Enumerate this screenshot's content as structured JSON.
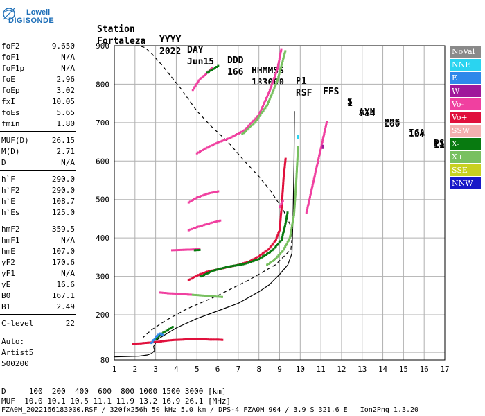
{
  "logo": {
    "line1": "Lowell",
    "line2": "DIGISONDE",
    "color": "#1e6fb8"
  },
  "header": {
    "row1": [
      "Station",
      "YYYY",
      "DAY",
      "DDD",
      "HHMMSS",
      "P1",
      "FFS",
      "S",
      "AXN",
      "PPS",
      "IGA",
      "PS"
    ],
    "row2": [
      "Fortaleza",
      "2022",
      "Jun15",
      "166",
      "183000",
      "RSF",
      "1",
      "714",
      "100",
      "10+",
      "11"
    ]
  },
  "params1": [
    {
      "key": "foF2",
      "value": "9.650"
    },
    {
      "key": "foF1",
      "value": "N/A"
    },
    {
      "key": "foF1p",
      "value": "N/A"
    },
    {
      "key": "foE",
      "value": "2.96"
    },
    {
      "key": "foEp",
      "value": "3.02"
    },
    {
      "key": "fxI",
      "value": "10.05"
    },
    {
      "key": "foEs",
      "value": "5.65"
    },
    {
      "key": "fmin",
      "value": "1.80"
    }
  ],
  "params2": [
    {
      "key": "MUF(D)",
      "value": "26.15"
    },
    {
      "key": "M(D)",
      "value": "2.71"
    },
    {
      "key": "D",
      "value": "N/A"
    }
  ],
  "params3": [
    {
      "key": "h`F",
      "value": "290.0"
    },
    {
      "key": "h`F2",
      "value": "290.0"
    },
    {
      "key": "h`E",
      "value": "108.7"
    },
    {
      "key": "h`Es",
      "value": "125.0"
    }
  ],
  "params4": [
    {
      "key": "hmF2",
      "value": "359.5"
    },
    {
      "key": "hmF1",
      "value": "N/A"
    },
    {
      "key": "hmE",
      "value": "107.0"
    },
    {
      "key": "yF2",
      "value": "170.6"
    },
    {
      "key": "yF1",
      "value": "N/A"
    },
    {
      "key": "yE",
      "value": "16.6"
    },
    {
      "key": "B0",
      "value": "167.1"
    },
    {
      "key": "B1",
      "value": "2.49"
    }
  ],
  "params5": [
    {
      "key": "C-level",
      "value": "22"
    }
  ],
  "auto": {
    "line1": "Auto:",
    "line2": "Artist5",
    "line3": "500200"
  },
  "legend": [
    {
      "label": "NoVal",
      "bg": "#8a8a8a",
      "fg": "#ffffff"
    },
    {
      "label": "NNE",
      "bg": "#2ad4f0",
      "fg": "#ffffff"
    },
    {
      "label": "E",
      "bg": "#2f88ea",
      "fg": "#ffffff"
    },
    {
      "label": "W",
      "bg": "#a0189a",
      "fg": "#ffffff"
    },
    {
      "label": "Vo-",
      "bg": "#f040a0",
      "fg": "#ffffff"
    },
    {
      "label": "Vo+",
      "bg": "#e0103c",
      "fg": "#ffffff"
    },
    {
      "label": "SSW",
      "bg": "#f4b0b0",
      "fg": "#ffffff"
    },
    {
      "label": "X-",
      "bg": "#087a10",
      "fg": "#ffffff"
    },
    {
      "label": "X+",
      "bg": "#78c060",
      "fg": "#ffffff"
    },
    {
      "label": "SSE",
      "bg": "#c8d020",
      "fg": "#ffffff"
    },
    {
      "label": "NNW",
      "bg": "#1818c8",
      "fg": "#ffffff"
    }
  ],
  "footer": {
    "row1": "D     100  200  400  600  800 1000 1500 3000 [km]",
    "row2": "MUF  10.0 10.1 10.5 11.1 11.9 13.2 16.9 26.1 [MHz]",
    "row3": "FZA0M_2022166183000.RSF / 320fx256h 50 kHz 5.0 km / DPS-4 FZA0M 904 / 3.9 S 321.6 E   Ion2Png 1.3.20"
  },
  "chart_data": {
    "type": "scatter",
    "title": "",
    "xlabel": "",
    "ylabel": "",
    "xlim": [
      1,
      17
    ],
    "ylim": [
      80,
      900
    ],
    "xticks": [
      1,
      2,
      3,
      4,
      5,
      6,
      7,
      8,
      9,
      10,
      11,
      12,
      13,
      14,
      15,
      16,
      17
    ],
    "yticks": [
      100,
      200,
      300,
      400,
      500,
      600,
      700,
      800,
      900
    ],
    "ytick_labels": [
      "",
      "200",
      "300",
      "400",
      "500",
      "600",
      "700",
      "800",
      "900"
    ],
    "y_bottom_label": "80",
    "grid": true,
    "profile_curve": {
      "x": [
        1.0,
        1.6,
        2.2,
        2.6,
        2.8,
        2.95,
        2.9,
        3.1,
        4.0,
        5.0,
        6.0,
        7.0,
        7.5,
        8.0,
        8.5,
        9.0,
        9.4,
        9.6,
        9.65,
        9.7,
        9.72
      ],
      "y": [
        88,
        89,
        90,
        93,
        97,
        105,
        115,
        135,
        165,
        190,
        210,
        230,
        245,
        260,
        278,
        305,
        330,
        360,
        450,
        600,
        730
      ]
    },
    "dashed_curve": {
      "x": [
        2.0,
        2.2,
        2.5,
        2.8,
        3.3,
        4.2,
        5.0,
        5.7,
        6.5,
        7.3,
        8.0,
        8.6,
        9.2,
        9.55,
        9.6,
        9.55,
        8.8,
        7.5,
        6.0,
        4.5,
        3.5,
        2.8,
        2.4
      ],
      "y": [
        900,
        900,
        895,
        880,
        850,
        790,
        730,
        690,
        650,
        600,
        560,
        520,
        470,
        430,
        400,
        370,
        330,
        290,
        250,
        215,
        185,
        160,
        140
      ]
    },
    "traces": [
      {
        "name": "Vo+",
        "color": "#e0103c",
        "x": [
          4.6,
          5.0,
          5.5,
          6.0,
          6.5,
          7.0,
          7.5,
          8.0,
          8.5,
          8.8,
          9.0,
          9.1,
          9.2,
          9.3
        ],
        "y": [
          290,
          302,
          312,
          318,
          324,
          330,
          338,
          352,
          372,
          392,
          420,
          480,
          560,
          610
        ]
      },
      {
        "name": "X-",
        "color": "#087a10",
        "x": [
          5.2,
          5.8,
          6.5,
          7.3,
          8.0,
          8.6,
          9.1,
          9.3,
          9.4
        ],
        "y": [
          300,
          315,
          325,
          332,
          345,
          365,
          395,
          440,
          470
        ]
      },
      {
        "name": "X+",
        "color": "#78c060",
        "x": [
          8.4,
          8.8,
          9.2,
          9.5,
          9.7,
          9.8,
          9.9
        ],
        "y": [
          330,
          345,
          370,
          400,
          460,
          540,
          640
        ]
      },
      {
        "name": "Vo-",
        "color": "#f040a0",
        "x": [
          5.0,
          5.5,
          6.0,
          6.6,
          7.3,
          8.0,
          8.5,
          8.9,
          9.1
        ],
        "y": [
          620,
          635,
          648,
          660,
          680,
          720,
          780,
          840,
          895
        ]
      },
      {
        "name": "X+",
        "color": "#78c060",
        "x": [
          7.2,
          7.8,
          8.4,
          8.9,
          9.3
        ],
        "y": [
          670,
          700,
          745,
          810,
          890
        ]
      },
      {
        "name": "Vo-",
        "color": "#f040a0",
        "x": [
          4.8,
          5.1,
          5.5,
          5.8
        ],
        "y": [
          785,
          810,
          830,
          845
        ]
      },
      {
        "name": "X-",
        "color": "#087a10",
        "x": [
          5.5,
          5.8,
          6.1
        ],
        "y": [
          830,
          840,
          850
        ]
      },
      {
        "name": "Vo-",
        "color": "#f040a0",
        "x": [
          4.6,
          5.0,
          5.5,
          6.1
        ],
        "y": [
          492,
          505,
          515,
          522
        ]
      },
      {
        "name": "Vo-",
        "color": "#f040a0",
        "x": [
          4.6,
          5.0,
          5.5,
          5.9,
          6.2
        ],
        "y": [
          420,
          428,
          436,
          442,
          446
        ]
      },
      {
        "name": "Vo-",
        "color": "#f040a0",
        "x": [
          3.8,
          4.3,
          4.8,
          5.2
        ],
        "y": [
          368,
          369,
          370,
          371
        ]
      },
      {
        "name": "X-",
        "color": "#087a10",
        "x": [
          4.9,
          5.2
        ],
        "y": [
          368,
          369
        ]
      },
      {
        "name": "Vo-",
        "color": "#f040a0",
        "x": [
          3.2,
          3.6,
          4.0,
          4.5,
          4.8
        ],
        "y": [
          258,
          256,
          255,
          253,
          252
        ]
      },
      {
        "name": "X+",
        "color": "#78c060",
        "x": [
          4.8,
          5.3,
          5.8,
          6.3
        ],
        "y": [
          252,
          250,
          248,
          246
        ]
      },
      {
        "name": "Vo+",
        "color": "#e0103c",
        "x": [
          1.9,
          2.3,
          2.7,
          3.1,
          3.5,
          3.9,
          4.3,
          4.7,
          5.2,
          5.6,
          6.0,
          6.3
        ],
        "y": [
          123,
          124,
          126,
          128,
          131,
          133,
          134,
          135,
          135,
          134,
          134,
          133
        ]
      },
      {
        "name": "X-",
        "color": "#087a10",
        "x": [
          3.0,
          3.3,
          3.6,
          3.9
        ],
        "y": [
          135,
          150,
          160,
          170
        ]
      },
      {
        "name": "E",
        "color": "#2f88ea",
        "x": [
          2.8,
          3.0,
          3.2,
          3.4
        ],
        "y": [
          125,
          140,
          150,
          145
        ]
      },
      {
        "name": "Vo-",
        "color": "#f040a0",
        "x": [
          9.0,
          9.2
        ],
        "y": [
          480,
          500
        ]
      },
      {
        "name": "Vo-",
        "color": "#f040a0",
        "x": [
          10.3,
          11.3
        ],
        "y": [
          465,
          705
        ]
      },
      {
        "name": "NNE",
        "color": "#2ad4f0",
        "x": [
          9.9
        ],
        "y": [
          663
        ]
      },
      {
        "name": "W",
        "color": "#a0189a",
        "x": [
          11.1
        ],
        "y": [
          637
        ]
      }
    ]
  }
}
